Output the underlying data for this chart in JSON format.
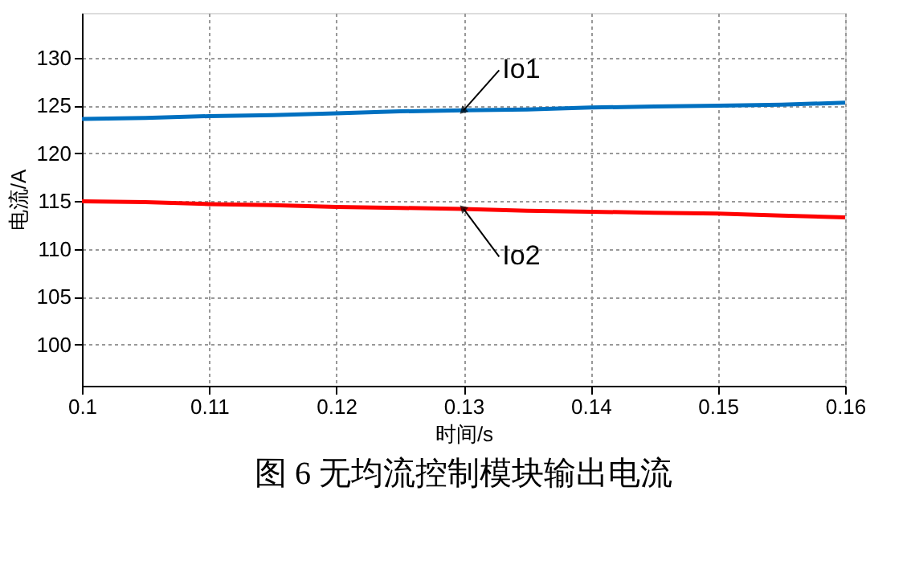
{
  "chart_data": {
    "type": "line",
    "title": "图 6  无均流控制模块输出电流",
    "xlabel": "时间/s",
    "ylabel": "电流/A",
    "x": [
      0.1,
      0.105,
      0.11,
      0.115,
      0.12,
      0.125,
      0.13,
      0.135,
      0.14,
      0.145,
      0.15,
      0.155,
      0.16
    ],
    "series": [
      {
        "name": "Io1",
        "color": "#0070c0",
        "values": [
          123.6,
          123.7,
          123.9,
          124.0,
          124.2,
          124.4,
          124.5,
          124.6,
          124.8,
          124.9,
          125.0,
          125.1,
          125.3
        ]
      },
      {
        "name": "Io2",
        "color": "#ff0000",
        "values": [
          115.0,
          114.9,
          114.7,
          114.6,
          114.4,
          114.3,
          114.2,
          114.0,
          113.9,
          113.8,
          113.7,
          113.5,
          113.3
        ]
      }
    ],
    "xlim": [
      0.1,
      0.16
    ],
    "xticks": [
      0.1,
      0.11,
      0.12,
      0.13,
      0.14,
      0.15,
      0.16
    ],
    "ylim": [
      95.7,
      134.7
    ],
    "yticks": [
      100,
      105,
      110,
      115,
      120,
      125,
      130
    ],
    "grid": true,
    "marker": "none",
    "line_style": "solid"
  }
}
